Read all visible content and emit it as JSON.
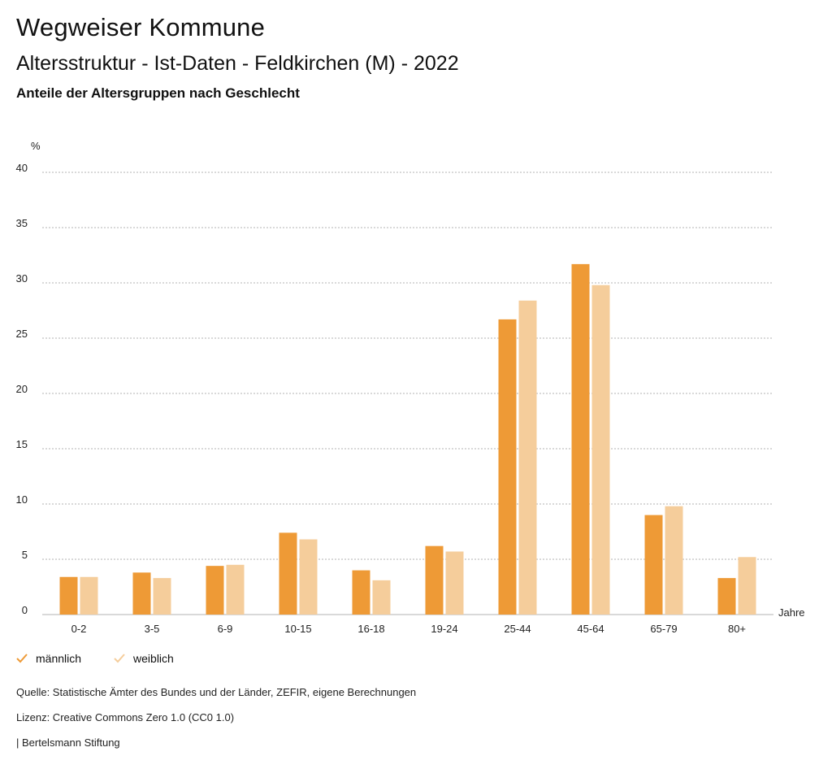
{
  "header": {
    "title": "Wegweiser Kommune",
    "subtitle": "Altersstruktur - Ist-Daten - Feldkirchen (M) - 2022",
    "subtitle2": "Anteile der Altersgruppen nach Geschlecht"
  },
  "colors": {
    "maennlich": "#ee9a36",
    "weiblich": "#f5cd9b",
    "grid": "#9a9a9a"
  },
  "chart_data": {
    "type": "bar",
    "ylabel": "%",
    "xlabel": "Jahre",
    "ylim": [
      0,
      40
    ],
    "yticks": [
      0,
      5,
      10,
      15,
      20,
      25,
      30,
      35,
      40
    ],
    "grid": true,
    "categories": [
      "0-2",
      "3-5",
      "6-9",
      "10-15",
      "16-18",
      "19-24",
      "25-44",
      "45-64",
      "65-79",
      "80+"
    ],
    "series": [
      {
        "name": "männlich",
        "values": [
          3.4,
          3.8,
          4.4,
          7.4,
          4.0,
          6.2,
          26.7,
          31.7,
          9.0,
          3.3
        ]
      },
      {
        "name": "weiblich",
        "values": [
          3.4,
          3.3,
          4.5,
          6.8,
          3.1,
          5.7,
          28.4,
          29.8,
          9.8,
          5.2
        ]
      }
    ],
    "legend": "bottom-left"
  },
  "footer": {
    "source": "Quelle: Statistische Ämter des Bundes und der Länder, ZEFIR, eigene Berechnungen",
    "license": "Lizenz: Creative Commons Zero 1.0 (CC0 1.0)",
    "publisher": "| Bertelsmann Stiftung"
  }
}
